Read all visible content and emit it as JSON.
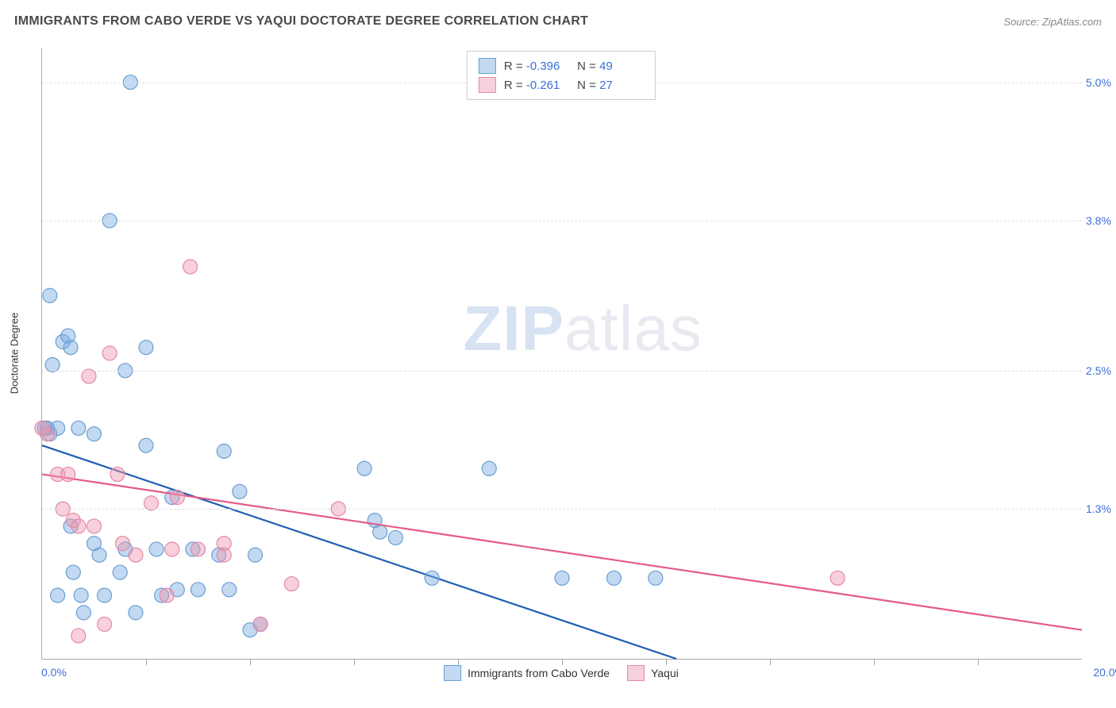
{
  "header": {
    "title": "IMMIGRANTS FROM CABO VERDE VS YAQUI DOCTORATE DEGREE CORRELATION CHART",
    "source": "Source: ZipAtlas.com"
  },
  "chart": {
    "type": "scatter",
    "y_axis_title": "Doctorate Degree",
    "xlim": [
      0,
      20
    ],
    "ylim": [
      0,
      5.3
    ],
    "x_min_label": "0.0%",
    "x_max_label": "20.0%",
    "y_ticks": [
      {
        "v": 1.3,
        "label": "1.3%"
      },
      {
        "v": 2.5,
        "label": "2.5%"
      },
      {
        "v": 3.8,
        "label": "3.8%"
      },
      {
        "v": 5.0,
        "label": "5.0%"
      }
    ],
    "x_tick_positions": [
      2,
      4,
      6,
      8,
      10,
      12,
      14,
      16,
      18
    ],
    "gridline_color": "#dddddd",
    "axis_color": "#aaaaaa",
    "background_color": "#ffffff",
    "watermark": {
      "text1": "ZIP",
      "text2": "atlas"
    },
    "series": [
      {
        "name": "Immigrants from Cabo Verde",
        "color_fill": "rgba(120,170,225,0.45)",
        "color_stroke": "#6a9fd4",
        "line_color": "#1e5fb4",
        "marker_r": 9,
        "stats": {
          "R": "-0.396",
          "N": "49"
        },
        "trend": {
          "x1": 0,
          "y1": 1.85,
          "x2": 12.2,
          "y2": 0
        },
        "points": [
          [
            0.1,
            2.0
          ],
          [
            0.15,
            1.95
          ],
          [
            0.15,
            3.15
          ],
          [
            0.2,
            2.55
          ],
          [
            0.3,
            0.55
          ],
          [
            0.4,
            2.75
          ],
          [
            0.5,
            2.8
          ],
          [
            0.55,
            2.7
          ],
          [
            0.55,
            1.15
          ],
          [
            0.6,
            0.75
          ],
          [
            0.7,
            2.0
          ],
          [
            0.75,
            0.55
          ],
          [
            0.8,
            0.4
          ],
          [
            1.0,
            1.0
          ],
          [
            1.0,
            1.95
          ],
          [
            1.1,
            0.9
          ],
          [
            1.2,
            0.55
          ],
          [
            1.3,
            3.8
          ],
          [
            1.5,
            0.75
          ],
          [
            1.6,
            0.95
          ],
          [
            1.6,
            2.5
          ],
          [
            1.7,
            5.0
          ],
          [
            1.8,
            0.4
          ],
          [
            2.0,
            2.7
          ],
          [
            2.0,
            1.85
          ],
          [
            2.2,
            0.95
          ],
          [
            2.3,
            0.55
          ],
          [
            2.5,
            1.4
          ],
          [
            2.6,
            0.6
          ],
          [
            2.9,
            0.95
          ],
          [
            3.0,
            0.6
          ],
          [
            3.4,
            0.9
          ],
          [
            3.5,
            1.8
          ],
          [
            3.6,
            0.6
          ],
          [
            3.8,
            1.45
          ],
          [
            4.0,
            0.25
          ],
          [
            4.1,
            0.9
          ],
          [
            4.2,
            0.3
          ],
          [
            6.2,
            1.65
          ],
          [
            6.4,
            1.2
          ],
          [
            6.5,
            1.1
          ],
          [
            6.8,
            1.05
          ],
          [
            7.5,
            0.7
          ],
          [
            8.6,
            1.65
          ],
          [
            10.0,
            0.7
          ],
          [
            11.0,
            0.7
          ],
          [
            11.8,
            0.7
          ],
          [
            0.3,
            2.0
          ],
          [
            0.05,
            2.0
          ]
        ]
      },
      {
        "name": "Yaqui",
        "color_fill": "rgba(240,150,175,0.45)",
        "color_stroke": "#e08aa5",
        "line_color": "#e55a8a",
        "marker_r": 9,
        "stats": {
          "R": "-0.261",
          "N": "27"
        },
        "trend": {
          "x1": 0,
          "y1": 1.6,
          "x2": 20,
          "y2": 0.25
        },
        "points": [
          [
            0.0,
            2.0
          ],
          [
            0.1,
            1.95
          ],
          [
            0.3,
            1.6
          ],
          [
            0.4,
            1.3
          ],
          [
            0.5,
            1.6
          ],
          [
            0.6,
            1.2
          ],
          [
            0.7,
            1.15
          ],
          [
            0.7,
            0.2
          ],
          [
            0.9,
            2.45
          ],
          [
            1.0,
            1.15
          ],
          [
            1.2,
            0.3
          ],
          [
            1.3,
            2.65
          ],
          [
            1.45,
            1.6
          ],
          [
            1.55,
            1.0
          ],
          [
            1.8,
            0.9
          ],
          [
            2.1,
            1.35
          ],
          [
            2.4,
            0.55
          ],
          [
            2.5,
            0.95
          ],
          [
            2.6,
            1.4
          ],
          [
            2.85,
            3.4
          ],
          [
            3.0,
            0.95
          ],
          [
            3.5,
            1.0
          ],
          [
            3.5,
            0.9
          ],
          [
            4.2,
            0.3
          ],
          [
            4.8,
            0.65
          ],
          [
            5.7,
            1.3
          ],
          [
            15.3,
            0.7
          ]
        ]
      }
    ],
    "stats_box": {
      "border_color": "#cccccc",
      "label_color": "#444444",
      "value_color": "#3b6fd8"
    }
  }
}
